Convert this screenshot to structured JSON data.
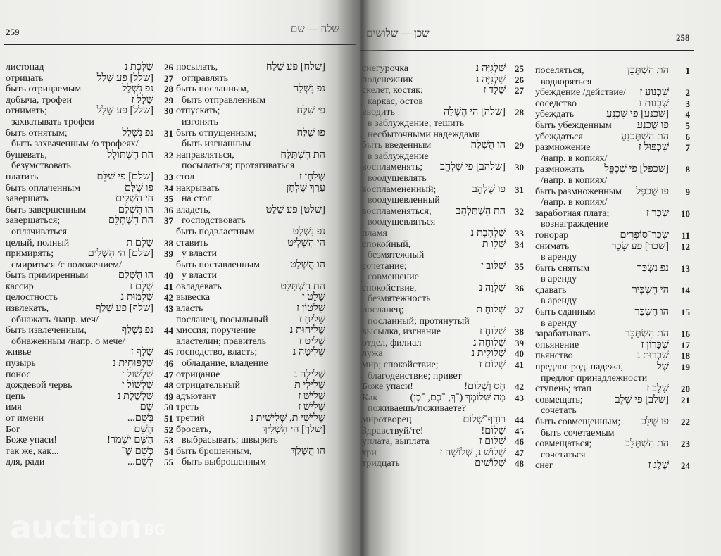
{
  "left_page": {
    "page_number": "259",
    "running_head": "שלח — שם",
    "col1": [
      {
        "ru": "листопад",
        "he": "שַׁלֶּכֶת נ",
        "n": "26"
      },
      {
        "ru": "отрицать",
        "he": "[שלל] פע שָׁלַל",
        "n": "27"
      },
      {
        "ru": "быть отрицаемым",
        "he": "נפ נִשְׁלַל",
        "n": "28"
      },
      {
        "ru": "добыча, трофеи",
        "he": "שָׁלָל ז",
        "n": "29"
      },
      {
        "ru": "отнимать;",
        "he": "[שלל] פע שָׁלַל",
        "n": "30"
      },
      {
        "ru": "захватывать трофеи",
        "c": true
      },
      {
        "ru": "быть отнятым;",
        "he": "נפ נִשְׁלַל",
        "n": "31"
      },
      {
        "ru": "быть захваченным /о трофеях/",
        "c": true
      },
      {
        "ru": "бушевать,",
        "he": "הת הִשְׁתּוֹלֵל",
        "n": "32"
      },
      {
        "ru": "безумствовать",
        "c": true
      },
      {
        "ru": "платить",
        "he": "[שלם] פי שִׁלֵּם",
        "n": "33"
      },
      {
        "ru": "быть оплаченным",
        "he": "פו שֻׁלַּם",
        "n": "34"
      },
      {
        "ru": "завершать",
        "he": "הי הִשְׁלִים",
        "n": "35"
      },
      {
        "ru": "быть завершенным",
        "he": "הו הֻשְׁלַם",
        "n": "36"
      },
      {
        "ru": "завершаться;",
        "he": "הת הִשְׁתַּלֵּם",
        "n": "37"
      },
      {
        "ru": "оплачиваться",
        "c": true
      },
      {
        "ru": "целый, полный",
        "he": "שָׁלֵם ת",
        "n": "38"
      },
      {
        "ru": "примирять;",
        "he": "[שלם] הי הִשְׁלִים",
        "n": "39"
      },
      {
        "ru": "смириться /с положением/",
        "c": true
      },
      {
        "ru": "быть примиренным",
        "he": "הו הֻשְׁלַם",
        "n": "40"
      },
      {
        "ru": "кассир",
        "he": "שַׁלָּם ז",
        "n": "41"
      },
      {
        "ru": "целостность",
        "he": "שְׁלֵמוּת נ",
        "n": "42"
      },
      {
        "ru": "извлекать,",
        "he": "[שלף] פע שָׁלַף",
        "n": "43"
      },
      {
        "ru": "обнажать /напр. меч/",
        "c": true
      },
      {
        "ru": "быть извлеченным,",
        "he": "נפ נִשְׁלַף",
        "n": "44"
      },
      {
        "ru": "обнаженным /напр. о мече/",
        "c": true
      },
      {
        "ru": "живье",
        "he": "שָׁלָף ז",
        "n": "45"
      },
      {
        "ru": "пузырь",
        "he": "שַׁלְפּוּחִית נ",
        "n": "46"
      },
      {
        "ru": "понос",
        "he": "שִׁלְשׁוּל ז",
        "n": "47"
      },
      {
        "ru": "дождевой червь",
        "he": "שִׁלְשׁוֹל ז",
        "n": "48"
      },
      {
        "ru": "цепь",
        "he": "שַׁלְשֶׁלֶת נ",
        "n": "49"
      },
      {
        "ru": "имя",
        "he": "שֵׁם",
        "n": "50"
      },
      {
        "ru": "от имени",
        "he": "בְּשֵׁם...",
        "n": "51"
      },
      {
        "ru": "Бог",
        "he": "הַשֵּׁם",
        "n": "52"
      },
      {
        "ru": "Боже упаси!",
        "he": "הַשֵּׁם יִשְׁמֹר!",
        "n": "53"
      },
      {
        "ru": "так же, как...",
        "he": "כְּשֵׁם שֶׁ־",
        "n": "54"
      },
      {
        "ru": "для, ради",
        "he": "לְשֵׁם...",
        "n": "55"
      }
    ],
    "col2": [
      {
        "ru": "посылать,",
        "he": "[שלח] פע שָׁלַח"
      },
      {
        "ru": "отправлять",
        "c": true
      },
      {
        "ru": "быть посланным,",
        "he": "נפ נִשְׁלַח"
      },
      {
        "ru": "быть отправленным",
        "c": true
      },
      {
        "ru": "отпускать;",
        "he": "פי שִׁלַּח"
      },
      {
        "ru": "изгонять",
        "c": true
      },
      {
        "ru": "быть отпущенным;",
        "he": "פו שֻׁלַּח"
      },
      {
        "ru": "быть изгнанным",
        "c": true
      },
      {
        "ru": "направляться,",
        "he": "הת הִשְׁתַּלַּח"
      },
      {
        "ru": "посылаться; протягиваться",
        "c": true
      },
      {
        "ru": "стол",
        "he": "שֻׁלְחָן ז"
      },
      {
        "ru": "накрывать",
        "he": "עָרַךְ שֻׁלְחָן"
      },
      {
        "ru": "на стол",
        "c": true
      },
      {
        "ru": "владеть,",
        "he": "[שלט] פע שָׁלַט"
      },
      {
        "ru": "господствовать",
        "c": true
      },
      {
        "ru": "быть подвластным",
        "he": "נפ נִשְׁלַט"
      },
      {
        "ru": "ставить",
        "he": "הי הִשְׁלִיט"
      },
      {
        "ru": "у власти",
        "c": true
      },
      {
        "ru": "быть поставленным",
        "he": "הו הֻשְׁלַט"
      },
      {
        "ru": "у власти",
        "c": true
      },
      {
        "ru": "овладевать",
        "he": "הת הִשְׁתַּלֵּט"
      },
      {
        "ru": "вывеска",
        "he": "שֶׁלֶט ז"
      },
      {
        "ru": "власть",
        "he": "שִׁלְטוֹן ז"
      },
      {
        "ru": "посланец, посыльный",
        "he": "שָׁלִיחַ ז"
      },
      {
        "ru": "миссия; поручение",
        "he": "שְׁלִיחוּת נ"
      },
      {
        "ru": "властелин; правитель",
        "he": "שַׁלִּיט ז"
      },
      {
        "ru": "господство, власть;",
        "he": "שְׁלִיטָה נ"
      },
      {
        "ru": "обладание, владение",
        "c": true
      },
      {
        "ru": "отрицание",
        "he": "שְׁלִילָה נ"
      },
      {
        "ru": "отрицательный",
        "he": "שְׁלִילִי ת"
      },
      {
        "ru": "адъютант",
        "he": "שָׁלִישׁ ז"
      },
      {
        "ru": "треть",
        "he": "שְׁלִישׁ ז"
      },
      {
        "ru": "третий",
        "he": "שְׁלִישִׁי ת, שְׁלִישִׁית נ"
      },
      {
        "ru": "бросать,",
        "he": "[שלך] הי הִשְׁלִיךְ"
      },
      {
        "ru": "выбрасывать; швырять",
        "c": true
      },
      {
        "ru": "быть брошенным,",
        "he": "הו הֻשְׁלַךְ"
      },
      {
        "ru": "быть выброшенным",
        "c": true
      }
    ]
  },
  "right_page": {
    "page_number": "258",
    "running_head": "שכן — שלושים",
    "col1": [
      {
        "ru": "снегурочка",
        "he": "שַׁלְגִּיָּה נ",
        "n": "25"
      },
      {
        "ru": "подснежник",
        "he": "שַׁלְגִּיָּה נ",
        "n": "26"
      },
      {
        "ru": "скелет, костяк;",
        "he": "שֶׁלֶד ז",
        "n": "27"
      },
      {
        "ru": "каркас, остов",
        "c": true
      },
      {
        "ru": "вводить",
        "he": "[שלה] הי הִשְׁלָה",
        "n": "28"
      },
      {
        "ru": "в заблуждение; тешить",
        "c": true
      },
      {
        "ru": "несбыточными надеждами",
        "c": true
      },
      {
        "ru": "быть введенным",
        "he": "הו הֻשְׁלָה",
        "n": "29"
      },
      {
        "ru": "в заблуждение",
        "c": true
      },
      {
        "ru": "воспламенять;",
        "he": "[שלהב] פי שִׁלְהֵב",
        "n": "30"
      },
      {
        "ru": "воодушевлять",
        "c": true
      },
      {
        "ru": "воспламененный;",
        "he": "פו שֻׁלְהָב",
        "n": "31"
      },
      {
        "ru": "воодушевленный",
        "c": true
      },
      {
        "ru": "воспламеняться;",
        "he": "הת הִשְׁתַּלְהֵב",
        "n": "32"
      },
      {
        "ru": "воодушевляться",
        "c": true
      },
      {
        "ru": "пламя",
        "he": "שַׁלְהֶבֶת נ",
        "n": "33"
      },
      {
        "ru": "спокойный,",
        "he": "שָׁלֵו ת",
        "n": "34"
      },
      {
        "ru": "безмятежный",
        "c": true
      },
      {
        "ru": "сочетание;",
        "he": "שִׁלּוּב ז",
        "n": "35"
      },
      {
        "ru": "совмещение",
        "c": true
      },
      {
        "ru": "спокойствие,",
        "he": "שַׁלְוָה נ",
        "n": "36"
      },
      {
        "ru": "безмятежность",
        "c": true
      },
      {
        "ru": "посланец;",
        "he": "שָׁלוּחַ ת",
        "n": "37"
      },
      {
        "ru": "посланный; протянутый",
        "c": true
      },
      {
        "ru": "высылка, изгнание",
        "he": "שִׁלּוּחַ ז",
        "n": "38"
      },
      {
        "ru": "отдел, филиал",
        "he": "שְׁלוּחָה נ",
        "n": "39"
      },
      {
        "ru": "лужа",
        "he": "שְׁלוּלִית נ",
        "n": "40"
      },
      {
        "ru": "мир; спокойствие;",
        "he": "שָׁלוֹם ז",
        "n": "41"
      },
      {
        "ru": "благоденствие; привет",
        "c": true
      },
      {
        "ru": "Боже упаси!",
        "he": "חַס וְשָׁלוֹם!",
        "n": "42"
      },
      {
        "ru": "Как",
        "he": "מַה שְּׁלוֹמְךָ (־ךְ, ־כֶם, ־כֶן)",
        "n": "43"
      },
      {
        "ru": "поживаешь/поживаете?",
        "c": true
      },
      {
        "ru": "миротворец",
        "he": "רוֹדֵף־שָׁלוֹם",
        "n": "44"
      },
      {
        "ru": "Здравствуй/те!",
        "he": "שָׁלוֹם!",
        "n": "45"
      },
      {
        "ru": "уплата, выплата",
        "he": "שִׁלּוּם ז",
        "n": "46"
      },
      {
        "ru": "три",
        "he": "שָׁלוֹשׁ נ, שְׁלוֹשָׁה ז",
        "n": "47"
      },
      {
        "ru": "тридцать",
        "he": "שְׁלוֹשִׁים",
        "n": "48"
      }
    ],
    "col2": [
      {
        "ru": "поселяться,",
        "he": "הת הִשְׁתַּכֵּן",
        "n": "1"
      },
      {
        "ru": "водворяться",
        "c": true
      },
      {
        "ru": "убеждение /действие/",
        "he": "שִׁכְנוּעַ ז",
        "n": "2"
      },
      {
        "ru": "соседство",
        "he": "שְׁכֵנוּת נ",
        "n": "3"
      },
      {
        "ru": "убеждать",
        "he": "[שכנע] פי שִׁכְנֵעַ",
        "n": "4"
      },
      {
        "ru": "быть убежденным",
        "he": "פו שֻׁכְנַע",
        "n": "5"
      },
      {
        "ru": "убеждаться",
        "he": "הת הִשְׁתַּכְנֵעַ",
        "n": "6"
      },
      {
        "ru": "размножение",
        "he": "שִׁכְפּוּל ז",
        "n": "7"
      },
      {
        "ru": "/напр. в копиях/",
        "c": true
      },
      {
        "ru": "размножать",
        "he": "[שכפל] פי שִׁכְפֵּל",
        "n": "8"
      },
      {
        "ru": "/напр. в копиях/",
        "c": true
      },
      {
        "ru": "быть размноженным",
        "he": "פו שֻׁכְפַּל",
        "n": "9"
      },
      {
        "ru": "/напр. в копиях/",
        "c": true
      },
      {
        "ru": "заработная плата;",
        "he": "שָׂכָר ז",
        "n": "10"
      },
      {
        "ru": "вознаграждение",
        "c": true
      },
      {
        "ru": "гонорар",
        "he": "שְׂכַר־סוֹפְרִים",
        "n": "11"
      },
      {
        "ru": "снимать",
        "he": "[שכר] פע שָׂכַר",
        "n": "12"
      },
      {
        "ru": "в аренду",
        "c": true
      },
      {
        "ru": "быть снятым",
        "he": "נפ נִשְׂכַּר",
        "n": "13"
      },
      {
        "ru": "в аренду",
        "c": true
      },
      {
        "ru": "сдавать",
        "he": "הי הִשְׂכִּיר",
        "n": "14"
      },
      {
        "ru": "в аренду",
        "c": true
      },
      {
        "ru": "быть сданным",
        "he": "הו הֻשְׂכַּר",
        "n": "15"
      },
      {
        "ru": "в аренду",
        "c": true
      },
      {
        "ru": "зарабатывать",
        "he": "הת הִשְׂתַּכֵּר",
        "n": "16"
      },
      {
        "ru": "опьянение",
        "he": "שִׁכָּרוֹן ז",
        "n": "17"
      },
      {
        "ru": "пьянство",
        "he": "שִׁכְרוּת נ",
        "n": "18"
      },
      {
        "ru": "предлог род. падежа,",
        "he": "שֶׁל",
        "n": "19"
      },
      {
        "ru": "предлог принадлежности",
        "c": true
      },
      {
        "ru": "ступень; этап",
        "he": "שָׁלָב ז",
        "n": "20"
      },
      {
        "ru": "совмещать;",
        "he": "[שלב] פי שִׁלֵּב",
        "n": "21"
      },
      {
        "ru": "сочетать",
        "c": true
      },
      {
        "ru": "быть совмещенным;",
        "he": "פו שֻׁלַּב",
        "n": "22"
      },
      {
        "ru": "быть сочетаемым",
        "c": true
      },
      {
        "ru": "совмещаться;",
        "he": "הת הִשְׁתַּלֵּב",
        "n": "23"
      },
      {
        "ru": "сочетаться",
        "c": true
      },
      {
        "ru": "снег",
        "he": "שֶׁלֶג ז",
        "n": "24"
      }
    ]
  },
  "watermark": {
    "text": "auction",
    "suffix": "BG"
  }
}
